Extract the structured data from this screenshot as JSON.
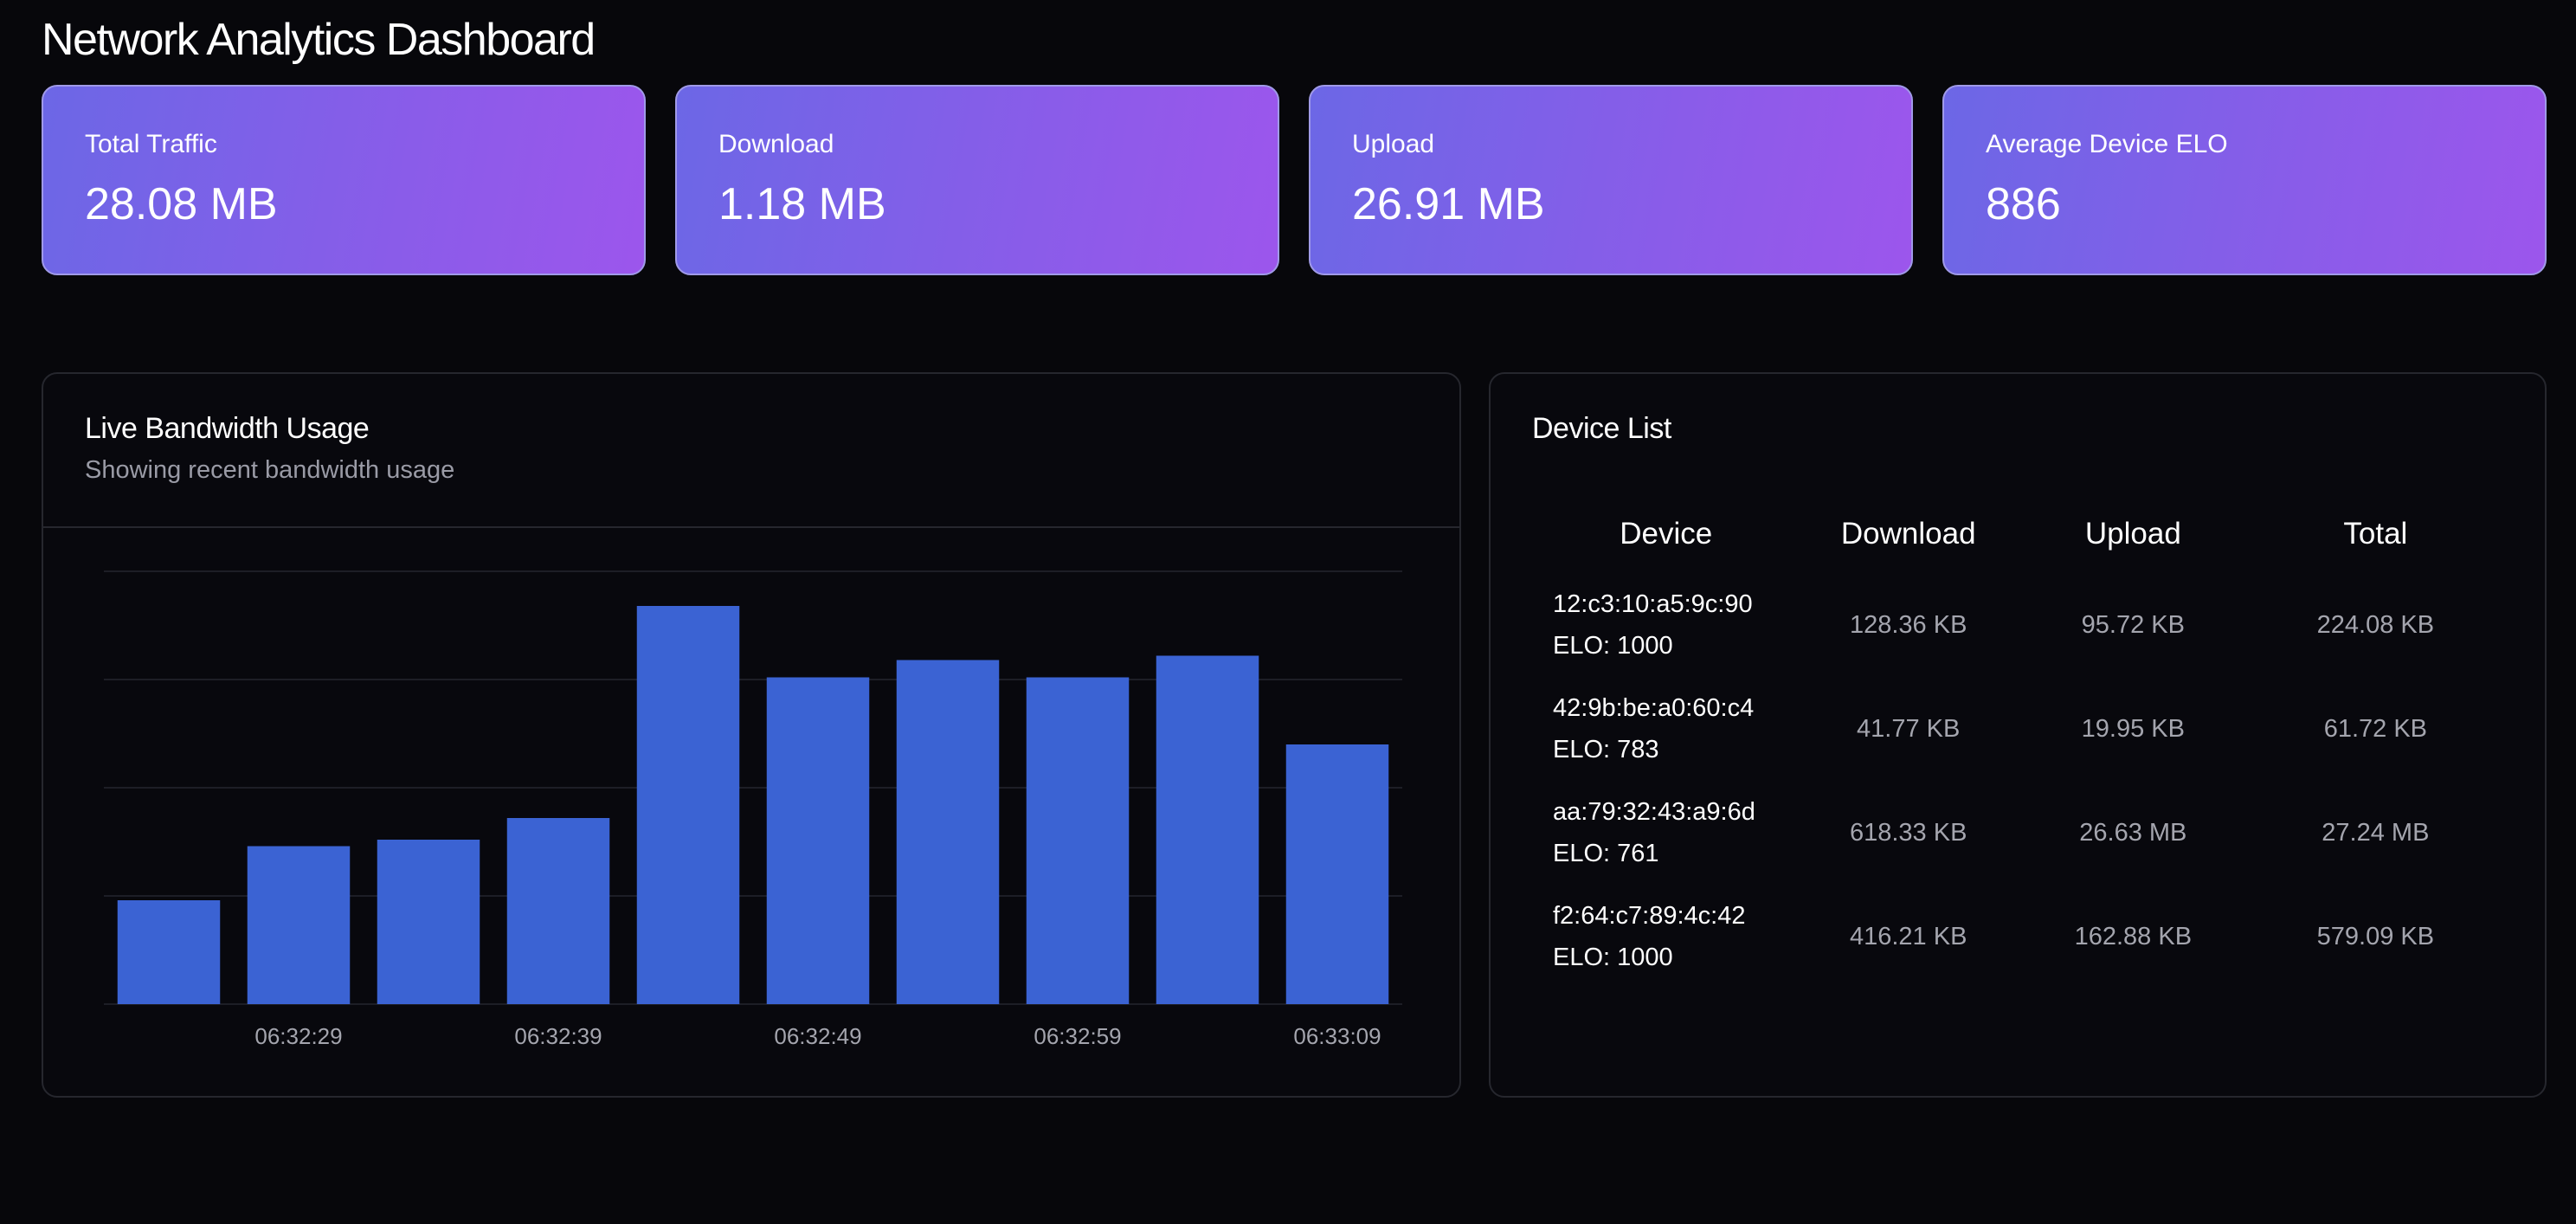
{
  "page": {
    "title": "Network Analytics Dashboard"
  },
  "stats": [
    {
      "label": "Total Traffic",
      "value": "28.08 MB"
    },
    {
      "label": "Download",
      "value": "1.18 MB"
    },
    {
      "label": "Upload",
      "value": "26.91 MB"
    },
    {
      "label": "Average Device ELO",
      "value": "886"
    }
  ],
  "bandwidth": {
    "title": "Live Bandwidth Usage",
    "subtitle": "Showing recent bandwidth usage"
  },
  "chart_data": {
    "type": "bar",
    "x_tick_labels": [
      "06:32:29",
      "06:32:39",
      "06:32:49",
      "06:32:59",
      "06:33:09"
    ],
    "values": [
      24,
      36.5,
      38,
      43,
      92,
      75.5,
      79.5,
      75.5,
      80.5,
      60
    ],
    "ylim": [
      0,
      100
    ],
    "grid": true,
    "bar_color": "#3b63d3"
  },
  "devices": {
    "title": "Device List",
    "columns": [
      "Device",
      "Download",
      "Upload",
      "Total"
    ],
    "rows": [
      {
        "mac": "12:c3:10:a5:9c:90",
        "elo": "ELO: 1000",
        "download": "128.36 KB",
        "upload": "95.72 KB",
        "total": "224.08 KB"
      },
      {
        "mac": "42:9b:be:a0:60:c4",
        "elo": "ELO: 783",
        "download": "41.77 KB",
        "upload": "19.95 KB",
        "total": "61.72 KB"
      },
      {
        "mac": "aa:79:32:43:a9:6d",
        "elo": "ELO: 761",
        "download": "618.33 KB",
        "upload": "26.63 MB",
        "total": "27.24 MB"
      },
      {
        "mac": "f2:64:c7:89:4c:42",
        "elo": "ELO: 1000",
        "download": "416.21 KB",
        "upload": "162.88 KB",
        "total": "579.09 KB"
      }
    ]
  }
}
